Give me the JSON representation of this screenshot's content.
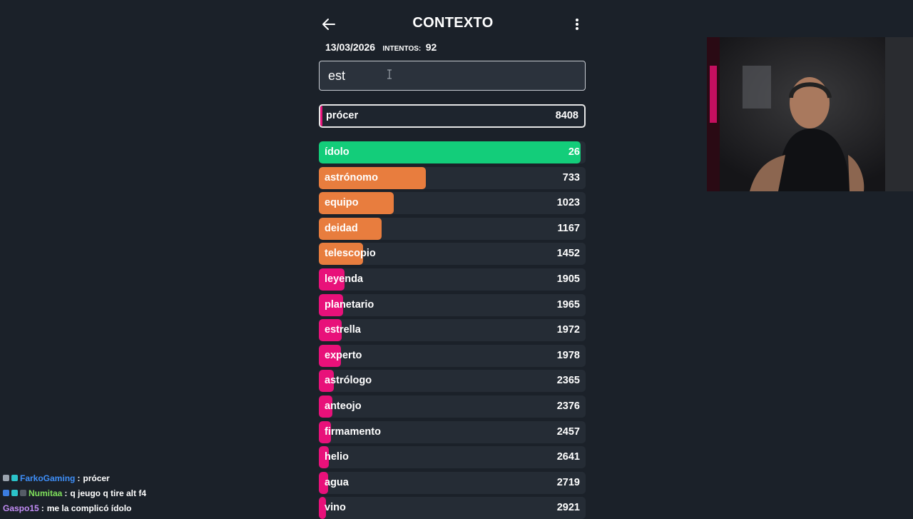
{
  "app": {
    "title": "CONTEXTO",
    "date": "13/03/2026",
    "attempts_label": "INTENTOS:",
    "attempts_value": "92",
    "back_icon": "arrow-left-icon",
    "menu_icon": "more-vertical-icon"
  },
  "search": {
    "value": "est",
    "placeholder": ""
  },
  "last_guess": {
    "word": "prócer",
    "rank": "8408",
    "color": "#e8117a"
  },
  "colors": {
    "green": "#13cd7a",
    "orange": "#e87d3e",
    "pink": "#e8117a",
    "row_bg": "#252c35",
    "page_bg": "#1b2129"
  },
  "guesses": [
    {
      "word": "ídolo",
      "rank": "26",
      "fill": 0.98,
      "color": "green"
    },
    {
      "word": "astrónomo",
      "rank": "733",
      "fill": 0.4,
      "color": "orange"
    },
    {
      "word": "equipo",
      "rank": "1023",
      "fill": 0.28,
      "color": "orange"
    },
    {
      "word": "deidad",
      "rank": "1167",
      "fill": 0.235,
      "color": "orange"
    },
    {
      "word": "telescopio",
      "rank": "1452",
      "fill": 0.165,
      "color": "orange"
    },
    {
      "word": "leyenda",
      "rank": "1905",
      "fill": 0.095,
      "color": "pink"
    },
    {
      "word": "planetario",
      "rank": "1965",
      "fill": 0.09,
      "color": "pink"
    },
    {
      "word": "estrella",
      "rank": "1972",
      "fill": 0.085,
      "color": "pink"
    },
    {
      "word": "experto",
      "rank": "1978",
      "fill": 0.083,
      "color": "pink"
    },
    {
      "word": "astrólogo",
      "rank": "2365",
      "fill": 0.055,
      "color": "pink"
    },
    {
      "word": "anteojo",
      "rank": "2376",
      "fill": 0.052,
      "color": "pink"
    },
    {
      "word": "firmamento",
      "rank": "2457",
      "fill": 0.046,
      "color": "pink"
    },
    {
      "word": "helio",
      "rank": "2641",
      "fill": 0.038,
      "color": "pink"
    },
    {
      "word": "agua",
      "rank": "2719",
      "fill": 0.034,
      "color": "pink"
    },
    {
      "word": "vino",
      "rank": "2921",
      "fill": 0.028,
      "color": "pink"
    }
  ],
  "chat": [
    {
      "user": "FarkoGaming",
      "user_color": "#3e8ef7",
      "sep": ":",
      "msg": "prócer",
      "badges": [
        "#9aa3ad",
        "#2bc3c9"
      ]
    },
    {
      "user": "Numitaa",
      "user_color": "#7fe05c",
      "sep": ":",
      "msg": "q jeugo q tire alt f4",
      "badges": [
        "#3b7de0",
        "#2bc3c9",
        "#555c66"
      ]
    },
    {
      "user": "Gaspo15",
      "user_color": "#c18cf5",
      "sep": ":",
      "msg": "me la complicó ídolo",
      "badges": []
    }
  ]
}
